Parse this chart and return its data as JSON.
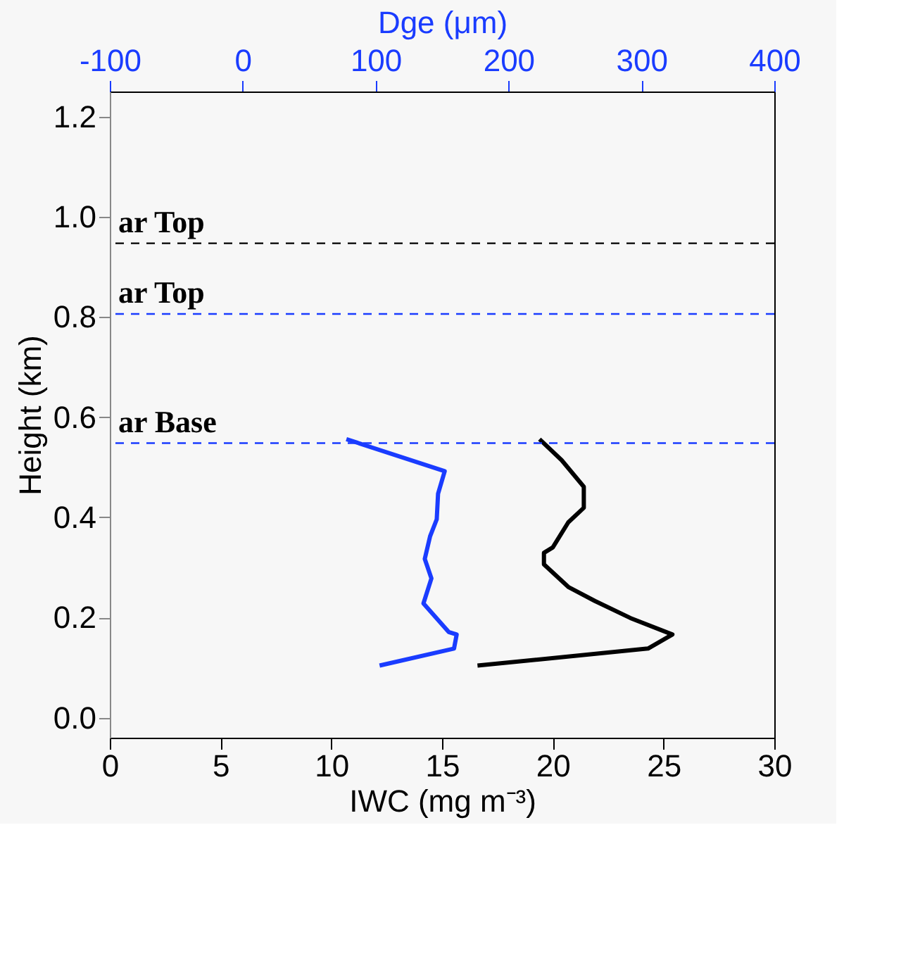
{
  "chart_data": {
    "type": "line",
    "xlabel": "IWC (mg m⁻³)",
    "x2label": "Dge (μm)",
    "ylabel": "Height (km)",
    "xlim": [
      0,
      30
    ],
    "xticks": [
      0,
      5,
      10,
      15,
      20,
      25,
      30
    ],
    "x2lim": [
      -100,
      400
    ],
    "x2ticks": [
      -100,
      0,
      100,
      200,
      300,
      400
    ],
    "ylim": [
      -0.04,
      1.25
    ],
    "yticks": [
      {
        "value": 0,
        "label": "0.0"
      },
      0.2,
      0.4,
      0.6,
      0.8,
      {
        "value": 1,
        "label": "1.0"
      },
      1.2
    ],
    "grid": false,
    "marker": "none",
    "line_style": "solid",
    "series": [
      {
        "color": "#000000",
        "x": [
          19.4,
          20.4,
          21.4,
          21.4,
          20.7,
          20.0,
          19.6,
          19.6,
          20.7,
          21.9,
          23.5,
          25.4,
          24.3,
          16.6
        ],
        "values": [
          0.556,
          0.514,
          0.461,
          0.419,
          0.39,
          0.34,
          0.329,
          0.306,
          0.261,
          0.233,
          0.199,
          0.166,
          0.138,
          0.104
        ]
      },
      {
        "color": "#1a3cff",
        "axis": "x2",
        "x": [
          78,
          152,
          147,
          146,
          141,
          137,
          142,
          136,
          155,
          161,
          159,
          103
        ],
        "values": [
          0.556,
          0.492,
          0.447,
          0.396,
          0.362,
          0.317,
          0.278,
          0.228,
          0.171,
          0.166,
          0.138,
          0.104
        ]
      }
    ],
    "ref_lines": [
      {
        "axis": "y",
        "value": 0.947,
        "label": "ar Top",
        "color": "#000000",
        "line_style": "dashed"
      },
      {
        "axis": "y",
        "value": 0.806,
        "label": "ar Top",
        "color": "#1a3cff",
        "line_style": "dashed"
      },
      {
        "axis": "y",
        "value": 0.548,
        "label": "ar Base",
        "color": "#1a3cff",
        "line_style": "dashed"
      }
    ]
  }
}
